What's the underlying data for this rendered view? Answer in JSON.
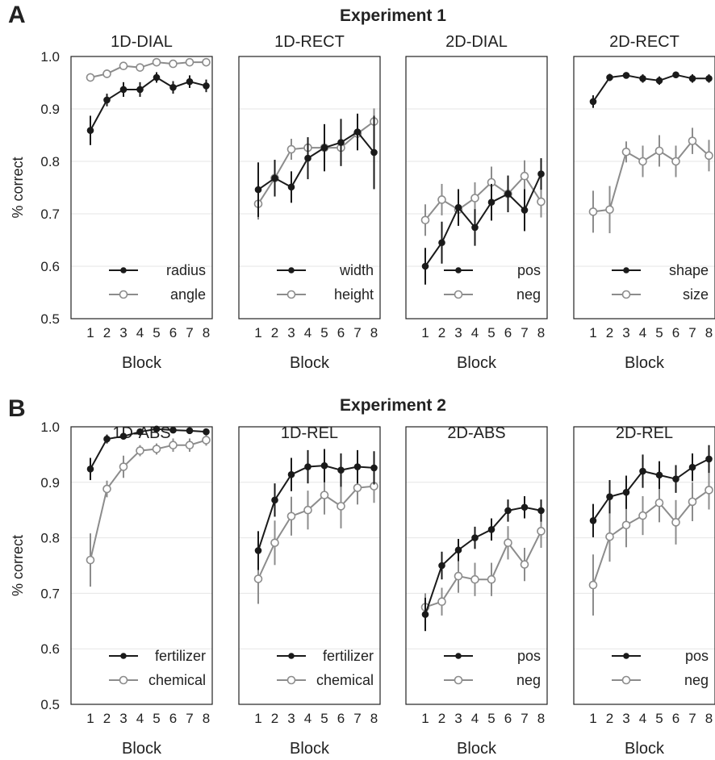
{
  "chart_data": {
    "type": "line",
    "panels": [
      {
        "label": "A",
        "title": "Experiment 1",
        "ylabel": "% correct",
        "xlabel": "Block",
        "ylim": [
          0.5,
          1.0
        ],
        "yticks": [
          "0.5",
          "0.6",
          "0.7",
          "0.8",
          "0.9",
          "1.0"
        ],
        "x": [
          1,
          2,
          3,
          4,
          5,
          6,
          7,
          8
        ],
        "subplots": [
          {
            "title": "1D-DIAL",
            "series": [
              {
                "name": "radius",
                "color": "#1a1a1a",
                "marker": "filled",
                "values": [
                  0.859,
                  0.917,
                  0.937,
                  0.937,
                  0.96,
                  0.941,
                  0.952,
                  0.944
                ],
                "err": [
                  0.028,
                  0.012,
                  0.014,
                  0.014,
                  0.01,
                  0.012,
                  0.012,
                  0.012
                ]
              },
              {
                "name": "angle",
                "color": "#8c8c8c",
                "marker": "open",
                "values": [
                  0.96,
                  0.967,
                  0.982,
                  0.979,
                  0.989,
                  0.986,
                  0.989,
                  0.989
                ],
                "err": [
                  0.008,
                  0.008,
                  0.005,
                  0.005,
                  0.004,
                  0.004,
                  0.004,
                  0.004
                ]
              }
            ]
          },
          {
            "title": "1D-RECT",
            "series": [
              {
                "name": "width",
                "color": "#1a1a1a",
                "marker": "filled",
                "values": [
                  0.746,
                  0.768,
                  0.751,
                  0.806,
                  0.826,
                  0.836,
                  0.856,
                  0.817
                ],
                "err": [
                  0.052,
                  0.035,
                  0.03,
                  0.04,
                  0.045,
                  0.045,
                  0.035,
                  0.07
                ]
              },
              {
                "name": "height",
                "color": "#8c8c8c",
                "marker": "open",
                "values": [
                  0.719,
                  0.768,
                  0.823,
                  0.826,
                  0.826,
                  0.826,
                  0.853,
                  0.876
                ],
                "err": [
                  0.03,
                  0.03,
                  0.02,
                  0.02,
                  0.025,
                  0.025,
                  0.025,
                  0.025
                ]
              }
            ]
          },
          {
            "title": "2D-DIAL",
            "series": [
              {
                "name": "pos",
                "color": "#1a1a1a",
                "marker": "filled",
                "values": [
                  0.6,
                  0.645,
                  0.712,
                  0.674,
                  0.722,
                  0.738,
                  0.707,
                  0.776
                ],
                "err": [
                  0.035,
                  0.04,
                  0.035,
                  0.035,
                  0.035,
                  0.035,
                  0.04,
                  0.03
                ]
              },
              {
                "name": "neg",
                "color": "#8c8c8c",
                "marker": "open",
                "values": [
                  0.688,
                  0.727,
                  0.708,
                  0.73,
                  0.76,
                  0.738,
                  0.772,
                  0.723
                ],
                "err": [
                  0.03,
                  0.03,
                  0.03,
                  0.03,
                  0.03,
                  0.03,
                  0.03,
                  0.03
                ]
              }
            ]
          },
          {
            "title": "2D-RECT",
            "series": [
              {
                "name": "shape",
                "color": "#1a1a1a",
                "marker": "filled",
                "values": [
                  0.914,
                  0.96,
                  0.964,
                  0.958,
                  0.954,
                  0.965,
                  0.958,
                  0.958
                ],
                "err": [
                  0.012,
                  0.007,
                  0.006,
                  0.008,
                  0.008,
                  0.006,
                  0.008,
                  0.008
                ]
              },
              {
                "name": "size",
                "color": "#8c8c8c",
                "marker": "open",
                "values": [
                  0.704,
                  0.708,
                  0.818,
                  0.8,
                  0.82,
                  0.8,
                  0.839,
                  0.811
                ],
                "err": [
                  0.04,
                  0.045,
                  0.02,
                  0.03,
                  0.03,
                  0.03,
                  0.025,
                  0.03
                ]
              }
            ]
          }
        ]
      },
      {
        "label": "B",
        "title": "Experiment 2",
        "ylabel": "% correct",
        "xlabel": "Block",
        "ylim": [
          0.5,
          1.0
        ],
        "yticks": [
          "0.5",
          "0.6",
          "0.7",
          "0.8",
          "0.9",
          "1.0"
        ],
        "x": [
          1,
          2,
          3,
          4,
          5,
          6,
          7,
          8
        ],
        "subplots": [
          {
            "title": "1D-ABS",
            "series": [
              {
                "name": "fertilizer",
                "color": "#1a1a1a",
                "marker": "filled",
                "values": [
                  0.924,
                  0.978,
                  0.983,
                  0.991,
                  0.996,
                  0.994,
                  0.993,
                  0.991
                ],
                "err": [
                  0.02,
                  0.008,
                  0.006,
                  0.004,
                  0.003,
                  0.003,
                  0.003,
                  0.003
                ]
              },
              {
                "name": "chemical",
                "color": "#8c8c8c",
                "marker": "open",
                "values": [
                  0.76,
                  0.888,
                  0.928,
                  0.957,
                  0.96,
                  0.967,
                  0.967,
                  0.976
                ],
                "err": [
                  0.048,
                  0.015,
                  0.02,
                  0.01,
                  0.01,
                  0.012,
                  0.012,
                  0.01
                ]
              }
            ]
          },
          {
            "title": "1D-REL",
            "series": [
              {
                "name": "fertilizer",
                "color": "#1a1a1a",
                "marker": "filled",
                "values": [
                  0.777,
                  0.868,
                  0.914,
                  0.928,
                  0.93,
                  0.922,
                  0.928,
                  0.926
                ],
                "err": [
                  0.035,
                  0.03,
                  0.03,
                  0.03,
                  0.03,
                  0.03,
                  0.03,
                  0.03
                ]
              },
              {
                "name": "chemical",
                "color": "#8c8c8c",
                "marker": "open",
                "values": [
                  0.726,
                  0.791,
                  0.839,
                  0.85,
                  0.877,
                  0.857,
                  0.89,
                  0.893
                ],
                "err": [
                  0.045,
                  0.04,
                  0.035,
                  0.035,
                  0.035,
                  0.04,
                  0.03,
                  0.03
                ]
              }
            ]
          },
          {
            "title": "2D-ABS",
            "series": [
              {
                "name": "pos",
                "color": "#1a1a1a",
                "marker": "filled",
                "values": [
                  0.662,
                  0.75,
                  0.778,
                  0.8,
                  0.815,
                  0.849,
                  0.855,
                  0.849
                ],
                "err": [
                  0.03,
                  0.025,
                  0.02,
                  0.02,
                  0.02,
                  0.02,
                  0.02,
                  0.02
                ]
              },
              {
                "name": "neg",
                "color": "#8c8c8c",
                "marker": "open",
                "values": [
                  0.675,
                  0.685,
                  0.731,
                  0.725,
                  0.725,
                  0.791,
                  0.752,
                  0.812
                ],
                "err": [
                  0.025,
                  0.025,
                  0.03,
                  0.03,
                  0.03,
                  0.03,
                  0.03,
                  0.03
                ]
              }
            ]
          },
          {
            "title": "2D-REL",
            "series": [
              {
                "name": "pos",
                "color": "#1a1a1a",
                "marker": "filled",
                "values": [
                  0.831,
                  0.874,
                  0.882,
                  0.92,
                  0.913,
                  0.906,
                  0.927,
                  0.942
                ],
                "err": [
                  0.03,
                  0.03,
                  0.03,
                  0.03,
                  0.025,
                  0.025,
                  0.025,
                  0.025
                ]
              },
              {
                "name": "neg",
                "color": "#8c8c8c",
                "marker": "open",
                "values": [
                  0.715,
                  0.802,
                  0.823,
                  0.84,
                  0.863,
                  0.828,
                  0.865,
                  0.886
                ],
                "err": [
                  0.055,
                  0.045,
                  0.04,
                  0.035,
                  0.035,
                  0.04,
                  0.035,
                  0.035
                ]
              }
            ]
          }
        ]
      }
    ]
  }
}
